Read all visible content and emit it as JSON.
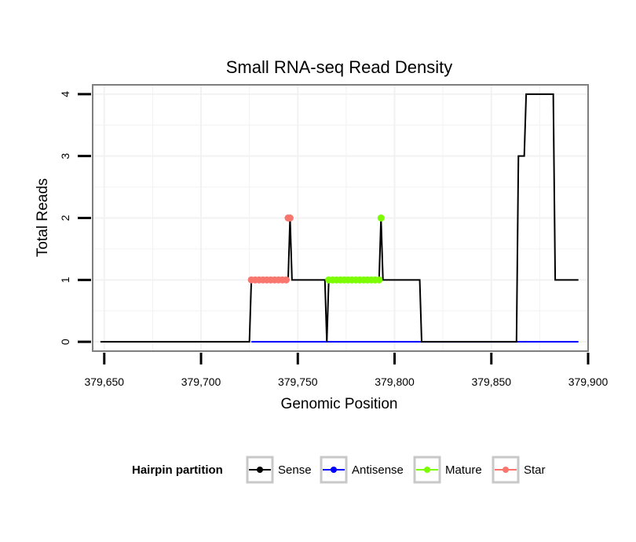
{
  "chart_data": {
    "type": "line",
    "title": "Small RNA-seq Read Density",
    "xlabel": "Genomic Position",
    "ylabel": "Total Reads",
    "xlim": [
      379644,
      379900
    ],
    "ylim": [
      -0.15,
      4.15
    ],
    "xticks": [
      379650,
      379700,
      379750,
      379800,
      379850,
      379900
    ],
    "xtick_labels": [
      "379,650",
      "379,700",
      "379,750",
      "379,800",
      "379,850",
      "379,900"
    ],
    "yticks": [
      0,
      1,
      2,
      3,
      4
    ],
    "ytick_labels": [
      "0",
      "1",
      "2",
      "3",
      "4"
    ],
    "grid": true,
    "legend_title": "Hairpin partition",
    "legend_position": "bottom",
    "series": [
      {
        "name": "Sense",
        "color": "#000000",
        "style": "line",
        "x": [
          379648,
          379725,
          379726,
          379745,
          379746,
          379747,
          379764,
          379765,
          379766,
          379792,
          379793,
          379794,
          379813,
          379814,
          379863,
          379864,
          379867,
          379868,
          379882,
          379883,
          379895
        ],
        "y": [
          0,
          0,
          1,
          1,
          2,
          1,
          1,
          0,
          1,
          1,
          2,
          1,
          1,
          0,
          0,
          3,
          3,
          4,
          4,
          1,
          1
        ]
      },
      {
        "name": "Antisense",
        "color": "#0000FF",
        "style": "line",
        "x": [
          379726,
          379895
        ],
        "y": [
          0,
          0
        ]
      },
      {
        "name": "Mature",
        "color": "#7CFC00",
        "style": "points",
        "x": [
          379766,
          379768,
          379770,
          379772,
          379774,
          379776,
          379778,
          379780,
          379782,
          379784,
          379786,
          379788,
          379790,
          379792,
          379793
        ],
        "y": [
          1,
          1,
          1,
          1,
          1,
          1,
          1,
          1,
          1,
          1,
          1,
          1,
          1,
          1,
          2
        ]
      },
      {
        "name": "Star",
        "color": "#F8766D",
        "style": "points",
        "x": [
          379726,
          379728,
          379730,
          379732,
          379734,
          379736,
          379738,
          379740,
          379742,
          379744,
          379745,
          379746
        ],
        "y": [
          1,
          1,
          1,
          1,
          1,
          1,
          1,
          1,
          1,
          1,
          2,
          2
        ]
      }
    ]
  }
}
